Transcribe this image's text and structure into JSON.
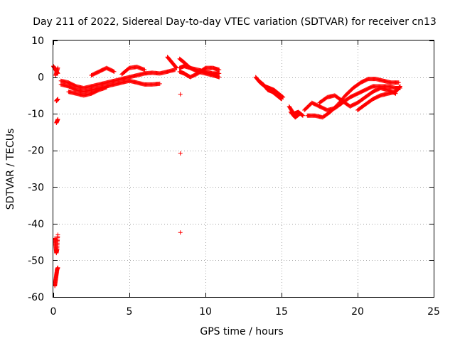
{
  "chart_data": {
    "type": "scatter",
    "title": "Day 211 of 2022, Sidereal Day-to-day VTEC variation (SDTVAR) for receiver cn13",
    "xlabel": "GPS time / hours",
    "ylabel": "SDTVAR / TECUs",
    "xlim": [
      0,
      25
    ],
    "ylim": [
      -60,
      10
    ],
    "xticks": [
      0,
      5,
      10,
      15,
      20,
      25
    ],
    "yticks": [
      10,
      0,
      -10,
      -20,
      -30,
      -40,
      -50,
      -60
    ],
    "xtick_labels": [
      "0",
      "5",
      "10",
      "15",
      "20",
      "25"
    ],
    "ytick_labels": [
      "10",
      "0",
      "-10",
      "-20",
      "-30",
      "-40",
      "-50",
      "-60"
    ],
    "grid": true,
    "marker": "+",
    "color": "#ff0000",
    "series": [
      {
        "name": "SDTVAR",
        "segments": [
          {
            "x": [
              0.0,
              0.15,
              0.3
            ],
            "y": [
              3.0,
              2.0,
              1.0
            ]
          },
          {
            "x": [
              0.15,
              0.3
            ],
            "y": [
              0.5,
              2.5
            ]
          },
          {
            "x": [
              0.2,
              0.3
            ],
            "y": [
              -6.5,
              -6.0
            ]
          },
          {
            "x": [
              0.2,
              0.3
            ],
            "y": [
              -12.5,
              -11.5
            ]
          },
          {
            "x": [
              0.5,
              1.0,
              1.5,
              2.0,
              2.5,
              3.0,
              3.5,
              4.0,
              4.5,
              5.0,
              5.5,
              6.0,
              6.5,
              7.0,
              7.5,
              8.0
            ],
            "y": [
              -1.0,
              -1.5,
              -2.5,
              -3.0,
              -2.5,
              -2.0,
              -1.5,
              -1.0,
              -0.5,
              0.0,
              0.5,
              1.0,
              1.2,
              1.0,
              1.5,
              2.0
            ]
          },
          {
            "x": [
              0.5,
              1.0,
              1.5,
              2.0,
              2.5,
              3.0,
              3.5,
              4.0,
              4.5,
              5.0,
              5.5,
              6.0,
              6.5,
              7.0
            ],
            "y": [
              -2.0,
              -2.5,
              -3.5,
              -4.0,
              -3.5,
              -3.0,
              -2.5,
              -2.0,
              -1.5,
              -1.0,
              -1.5,
              -2.0,
              -2.0,
              -1.8
            ]
          },
          {
            "x": [
              1.0,
              1.5,
              2.0,
              2.5,
              3.0,
              3.5
            ],
            "y": [
              -4.0,
              -4.5,
              -5.0,
              -4.5,
              -3.5,
              -2.8
            ]
          },
          {
            "x": [
              2.5,
              3.0,
              3.5,
              4.0
            ],
            "y": [
              0.5,
              1.5,
              2.5,
              1.5
            ]
          },
          {
            "x": [
              4.5,
              5.0,
              5.5,
              6.0
            ],
            "y": [
              0.8,
              2.5,
              2.8,
              2.0
            ]
          },
          {
            "x": [
              7.5,
              7.8,
              8.1
            ],
            "y": [
              5.5,
              4.0,
              2.5
            ]
          },
          {
            "x": [
              8.3,
              8.6,
              9.0,
              9.5,
              10.0,
              10.5,
              10.9
            ],
            "y": [
              5.0,
              4.0,
              2.5,
              1.5,
              1.0,
              0.5,
              0.0
            ]
          },
          {
            "x": [
              8.3,
              8.6,
              9.0,
              9.5,
              10.0,
              10.5,
              10.9
            ],
            "y": [
              1.5,
              1.0,
              0.0,
              1.0,
              2.5,
              2.5,
              2.0
            ]
          },
          {
            "x": [
              8.3,
              8.6,
              9.0,
              9.5,
              10.0,
              10.5,
              10.9
            ],
            "y": [
              2.5,
              3.0,
              2.5,
              2.0,
              1.5,
              1.0,
              1.0
            ]
          },
          {
            "x": [
              8.35
            ],
            "y": [
              -4.7
            ]
          },
          {
            "x": [
              8.35
            ],
            "y": [
              -20.8
            ]
          },
          {
            "x": [
              8.35
            ],
            "y": [
              -42.4
            ]
          },
          {
            "x": [
              0.1,
              0.15,
              0.2,
              0.25,
              0.3
            ],
            "y": [
              -44.0,
              -46.0,
              -48.0,
              -47.0,
              -43.0
            ]
          },
          {
            "x": [
              0.1,
              0.15,
              0.2,
              0.25,
              0.3
            ],
            "y": [
              -57.0,
              -55.5,
              -54.0,
              -52.5,
              -52.0
            ]
          },
          {
            "x": [
              13.3,
              13.6,
              13.9,
              14.2,
              14.5,
              14.8,
              15.1
            ],
            "y": [
              0.0,
              -1.5,
              -2.5,
              -3.0,
              -3.5,
              -4.5,
              -5.5
            ]
          },
          {
            "x": [
              13.5,
              13.8,
              14.1,
              14.4,
              14.7,
              15.0
            ],
            "y": [
              -1.0,
              -2.0,
              -3.5,
              -4.0,
              -5.0,
              -6.0
            ]
          },
          {
            "x": [
              15.5,
              15.8,
              16.1,
              16.4
            ],
            "y": [
              -8.0,
              -10.0,
              -9.5,
              -10.5
            ]
          },
          {
            "x": [
              15.6,
              15.9,
              16.2
            ],
            "y": [
              -9.5,
              -11.0,
              -10.0
            ]
          },
          {
            "x": [
              16.5,
              17.0,
              17.5,
              18.0,
              18.5,
              19.0,
              19.5,
              20.0,
              20.5,
              21.0,
              21.5,
              22.0,
              22.5,
              22.8
            ],
            "y": [
              -9.0,
              -7.0,
              -8.0,
              -9.0,
              -8.5,
              -7.0,
              -5.5,
              -4.5,
              -3.5,
              -2.5,
              -2.5,
              -2.5,
              -3.0,
              -3.0
            ]
          },
          {
            "x": [
              16.7,
              17.2,
              17.7,
              18.2,
              18.7,
              19.2,
              19.7,
              20.2,
              20.7,
              21.2,
              21.7,
              22.2,
              22.7
            ],
            "y": [
              -10.5,
              -10.5,
              -11.0,
              -9.5,
              -7.5,
              -5.0,
              -3.0,
              -1.5,
              -0.5,
              -0.5,
              -1.0,
              -1.5,
              -1.5
            ]
          },
          {
            "x": [
              17.5,
              18.0,
              18.5,
              19.0,
              19.5,
              20.0,
              20.5,
              21.0,
              21.5,
              22.0,
              22.5
            ],
            "y": [
              -7.0,
              -5.5,
              -5.0,
              -6.5,
              -8.0,
              -7.0,
              -5.5,
              -4.0,
              -3.0,
              -3.5,
              -4.5
            ]
          },
          {
            "x": [
              20.0,
              20.5,
              21.0,
              21.5,
              22.0,
              22.5,
              22.8
            ],
            "y": [
              -9.0,
              -7.5,
              -6.0,
              -5.0,
              -4.5,
              -4.0,
              -2.5
            ]
          }
        ]
      }
    ]
  }
}
